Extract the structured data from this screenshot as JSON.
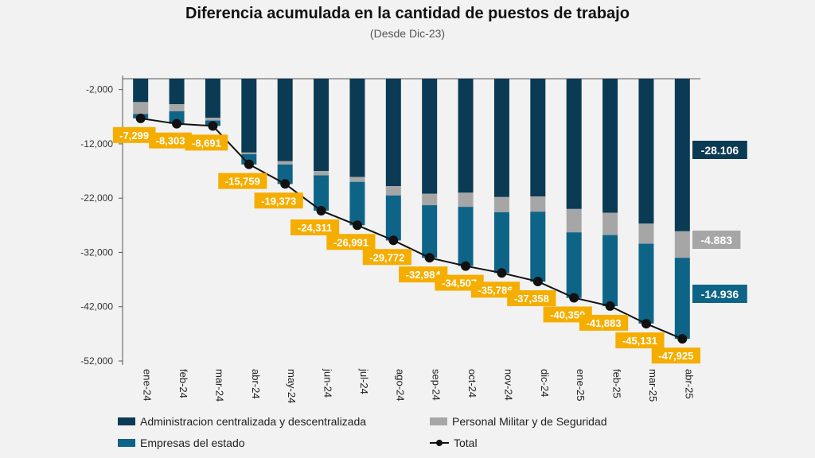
{
  "title": "Diferencia acumulada en la cantidad de puestos de trabajo",
  "subtitle": "(Desde Dic-23)",
  "colors": {
    "admin": "#0b3a55",
    "militar": "#a6a6a6",
    "empresas": "#0d6486",
    "total": "#111111",
    "label_bg": "#f5ad00"
  },
  "legend": {
    "admin": "Administracion centralizada y descentralizada",
    "militar": "Personal Militar y de Seguridad",
    "empresas": "Empresas del estado",
    "total": "Total"
  },
  "chart_data": {
    "type": "bar",
    "stacked": true,
    "title": "Diferencia acumulada en la cantidad de puestos de trabajo",
    "subtitle": "(Desde Dic-23)",
    "categories": [
      "ene-24",
      "feb-24",
      "mar-24",
      "abr-24",
      "may-24",
      "jun-24",
      "jul-24",
      "ago-24",
      "sep-24",
      "oct-24",
      "nov-24",
      "dic-24",
      "ene-25",
      "feb-25",
      "mar-25",
      "abr-25"
    ],
    "series": [
      {
        "name": "Administracion centralizada y descentralizada",
        "values": [
          -4300,
          -4700,
          -7200,
          -13600,
          -15200,
          -17000,
          -18100,
          -19800,
          -21200,
          -21000,
          -21800,
          -21700,
          -24000,
          -24700,
          -26700,
          -28106
        ]
      },
      {
        "name": "Personal Militar y de Seguridad",
        "values": [
          -2200,
          -1300,
          -500,
          -300,
          -600,
          -800,
          -900,
          -1700,
          -2100,
          -2600,
          -2800,
          -2800,
          -4300,
          -4100,
          -3700,
          -4883
        ]
      },
      {
        "name": "Empresas del estado",
        "values": [
          -800,
          -2300,
          -1000,
          -1900,
          -3600,
          -6500,
          -8000,
          -8300,
          -9700,
          -10900,
          -11200,
          -12900,
          -12100,
          -13100,
          -14700,
          -14936
        ]
      }
    ],
    "total": {
      "name": "Total",
      "values": [
        -7299,
        -8303,
        -8691,
        -15759,
        -19373,
        -24311,
        -26991,
        -29772,
        -32984,
        -34507,
        -35786,
        -37358,
        -40350,
        -41883,
        -45131,
        -47925
      ]
    },
    "total_labels": [
      "-7,299",
      "-8,303",
      "-8,691",
      "-15,759",
      "-19,373",
      "-24,311",
      "-26,991",
      "-29,772",
      "-32,984",
      "-34,507",
      "-35,786",
      "-37,358",
      "-40,350",
      "-41,883",
      "-45,131",
      "-47,925"
    ],
    "end_labels": {
      "admin": "-28.106",
      "militar": "-4.883",
      "empresas": "-14.936"
    },
    "ylim": [
      -52000,
      2000
    ],
    "yticks": [
      -2000,
      -12000,
      -22000,
      -32000,
      -42000,
      -52000
    ],
    "ytick_labels": [
      "-2,000",
      "-12,000",
      "-22,000",
      "-32,000",
      "-42,000",
      "-52,000"
    ],
    "legend_position": "bottom"
  }
}
